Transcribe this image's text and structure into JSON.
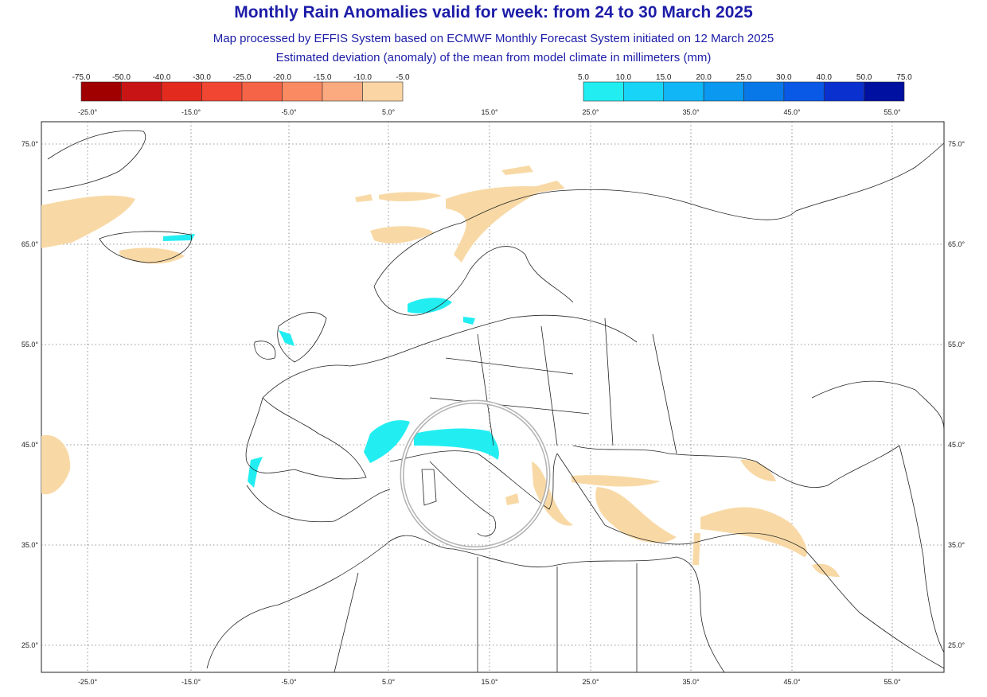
{
  "header": {
    "title": "Monthly Rain Anomalies valid for week: from 24 to 30 March 2025",
    "subtitle_1": "Map processed by EFFIS System based on ECMWF Monthly Forecast System initiated on 12 March 2025",
    "subtitle_2": "Estimated deviation (anomaly) of the mean from model climate in millimeters (mm)"
  },
  "legend_negative": {
    "labels": [
      "-75.0",
      "-50.0",
      "-40.0",
      "-30.0",
      "-25.0",
      "-20.0",
      "-15.0",
      "-10.0",
      "-5.0"
    ],
    "colors": [
      "#a00000",
      "#c81414",
      "#e22a1e",
      "#f04632",
      "#f56446",
      "#f98a62",
      "#fbaa80",
      "#fcd5a4"
    ]
  },
  "legend_positive": {
    "labels": [
      "5.0",
      "10.0",
      "15.0",
      "20.0",
      "25.0",
      "30.0",
      "40.0",
      "50.0",
      "75.0"
    ],
    "colors": [
      "#22eef2",
      "#18d4f6",
      "#10b6f6",
      "#0a98f0",
      "#0878e8",
      "#0a58e6",
      "#0a30d0",
      "#0010a0"
    ]
  },
  "longitude_labels": [
    "-25.0°",
    "-15.0°",
    "-5.0°",
    "5.0°",
    "15.0°",
    "25.0°",
    "35.0°",
    "45.0°",
    "55.0°"
  ],
  "latitude_labels": [
    "75.0°",
    "65.0°",
    "55.0°",
    "45.0°",
    "35.0°",
    "25.0°"
  ]
}
